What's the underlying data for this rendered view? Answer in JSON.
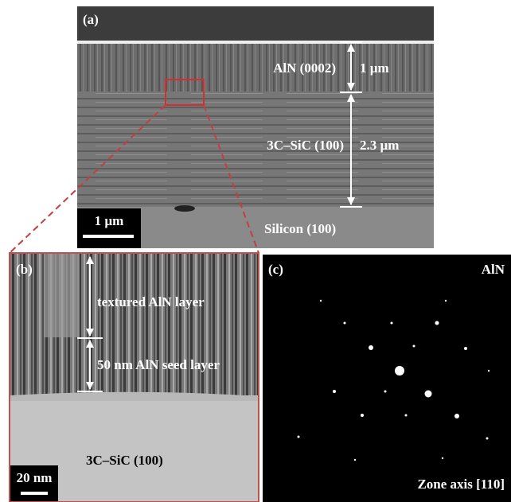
{
  "panel_a": {
    "label": "(a)",
    "layers": [
      {
        "name": "AlN (0002)",
        "thickness": "1 µm"
      },
      {
        "name": "3C–SiC (100)",
        "thickness": "2.3 µm"
      }
    ],
    "substrate": "Silicon (100)",
    "scale_bar": "1 µm"
  },
  "panel_b": {
    "label": "(b)",
    "layers": [
      "textured AlN layer",
      "50 nm AlN seed layer"
    ],
    "substrate": "3C–SiC (100)",
    "scale_bar": "20 nm"
  },
  "panel_c": {
    "label": "(c)",
    "material": "AlN",
    "zone_axis": "Zone axis [110]"
  }
}
